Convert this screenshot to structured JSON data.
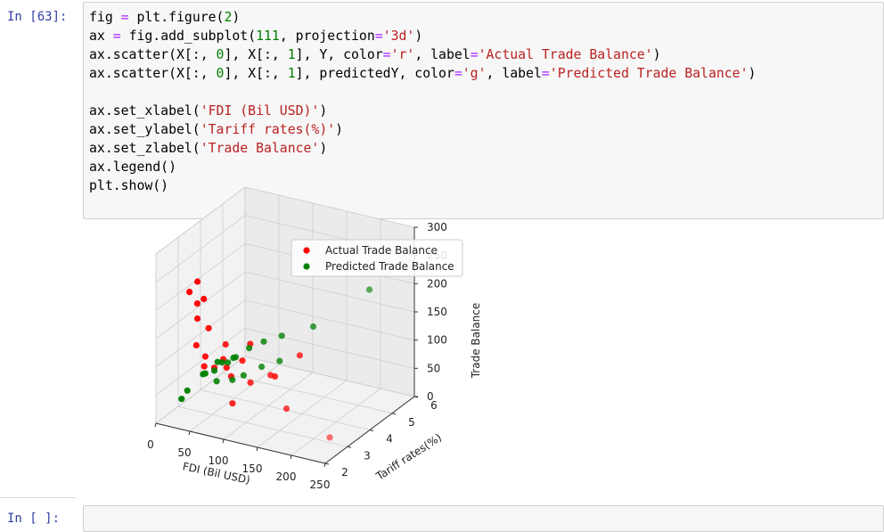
{
  "cells": [
    {
      "prompt": "In [63]:",
      "code_lines": [
        "fig = plt.figure(2)",
        "ax = fig.add_subplot(111, projection='3d')",
        "ax.scatter(X[:, 0], X[:, 1], Y, color='r', label='Actual Trade Balance')",
        "ax.scatter(X[:, 0], X[:, 1], predictedY, color='g', label='Predicted Trade Balance')",
        "",
        "ax.set_xlabel('FDI (Bil USD)')",
        "ax.set_ylabel('Tariff rates(%)')",
        "ax.set_zlabel('Trade Balance')",
        "ax.legend()",
        "plt.show()"
      ]
    },
    {
      "prompt": "In [ ]:",
      "code_lines": []
    }
  ],
  "chart_data": {
    "type": "scatter",
    "projection": "3d",
    "xlabel": "FDI (Bil USD)",
    "ylabel": "Tariff rates(%)",
    "zlabel": "Trade Balance",
    "x_ticks": [
      "0",
      "50",
      "100",
      "150",
      "200",
      "250"
    ],
    "y_ticks": [
      "2",
      "3",
      "4",
      "5",
      "6"
    ],
    "z_ticks": [
      "0",
      "50",
      "100",
      "150",
      "200",
      "250",
      "300"
    ],
    "legend_position": "top",
    "grid": true,
    "series": [
      {
        "name": "Actual Trade Balance",
        "color": "#ff0000",
        "points": [
          [
            10,
            3.2,
            200
          ],
          [
            12,
            3.5,
            210
          ],
          [
            15,
            3.4,
            175
          ],
          [
            18,
            3.6,
            178
          ],
          [
            25,
            3.1,
            160
          ],
          [
            30,
            2.9,
            120
          ],
          [
            35,
            3.3,
            140
          ],
          [
            40,
            3.0,
            100
          ],
          [
            45,
            2.8,
            90
          ],
          [
            50,
            3.1,
            80
          ],
          [
            55,
            3.5,
            70
          ],
          [
            60,
            3.2,
            95
          ],
          [
            65,
            3.4,
            60
          ],
          [
            70,
            3.0,
            130
          ],
          [
            75,
            3.6,
            85
          ],
          [
            80,
            3.8,
            110
          ],
          [
            90,
            2.7,
            40
          ],
          [
            100,
            3.2,
            65
          ],
          [
            110,
            4.0,
            55
          ],
          [
            120,
            3.5,
            75
          ],
          [
            140,
            4.2,
            95
          ],
          [
            150,
            3.3,
            30
          ],
          [
            250,
            2.2,
            40
          ]
        ]
      },
      {
        "name": "Predicted Trade Balance",
        "color": "#008000",
        "points": [
          [
            5,
            3.0,
            15
          ],
          [
            20,
            2.8,
            40
          ],
          [
            30,
            3.2,
            60
          ],
          [
            40,
            3.0,
            70
          ],
          [
            45,
            3.4,
            80
          ],
          [
            50,
            3.1,
            75
          ],
          [
            55,
            3.3,
            85
          ],
          [
            60,
            2.9,
            65
          ],
          [
            65,
            3.5,
            90
          ],
          [
            70,
            3.1,
            95
          ],
          [
            75,
            3.3,
            100
          ],
          [
            80,
            3.0,
            70
          ],
          [
            85,
            3.6,
            110
          ],
          [
            90,
            3.2,
            75
          ],
          [
            100,
            3.8,
            120
          ],
          [
            110,
            3.4,
            90
          ],
          [
            120,
            4.0,
            130
          ],
          [
            130,
            3.6,
            100
          ],
          [
            150,
            4.5,
            140
          ],
          [
            200,
            5.5,
            190
          ]
        ]
      }
    ]
  }
}
